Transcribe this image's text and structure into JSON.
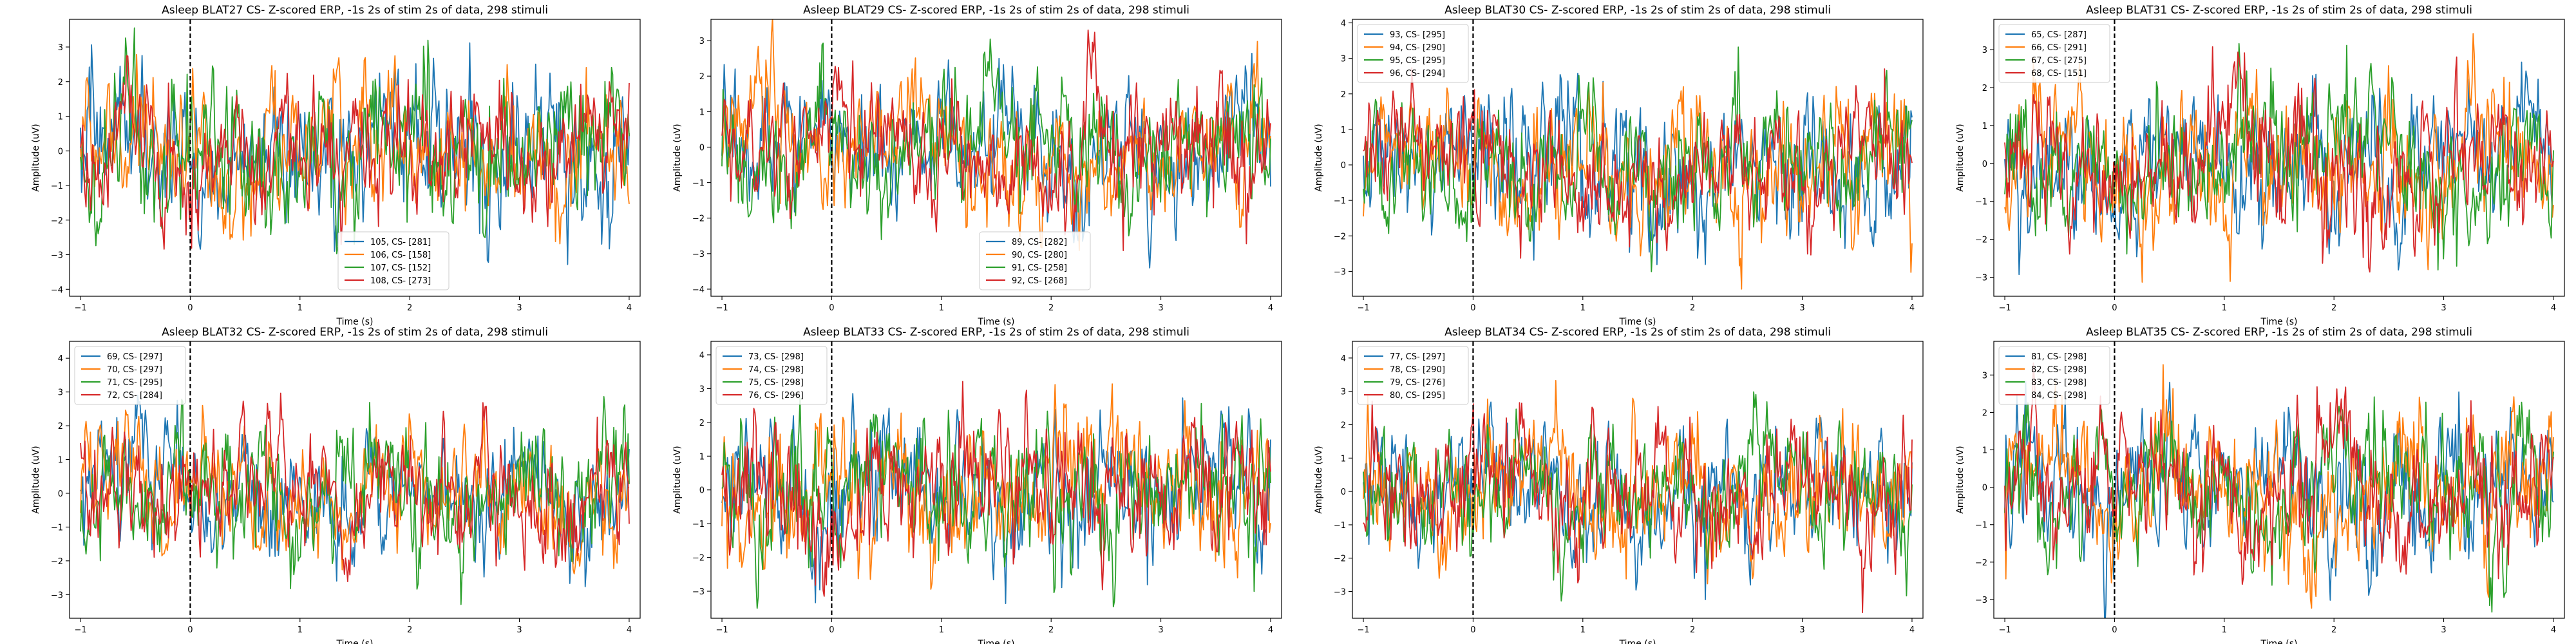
{
  "chart_data": [
    {
      "type": "line",
      "title": "Asleep BLAT27 CS- Z-scored ERP, -1s 2s of stim 2s of data, 298 stimuli",
      "xlabel": "Time (s)",
      "ylabel": "Amplitude (uV)",
      "xlim": [
        -1.1,
        4.1
      ],
      "ylim": [
        -4.2,
        3.8
      ],
      "xticks": [
        -1,
        0,
        1,
        2,
        3,
        4
      ],
      "yticks": [
        -4,
        -3,
        -2,
        -1,
        0,
        1,
        2,
        3
      ],
      "stim_marker_x": 0,
      "legend_position": "lower center",
      "series": [
        {
          "name": "105, CS- [281]",
          "color": "#1f77b4",
          "amplitude": 1.1
        },
        {
          "name": "106, CS- [158]",
          "color": "#ff7f0e",
          "amplitude": 1.05
        },
        {
          "name": "107, CS- [152]",
          "color": "#2ca02c",
          "amplitude": 1.15
        },
        {
          "name": "108, CS- [273]",
          "color": "#d62728",
          "amplitude": 1.0
        }
      ]
    },
    {
      "type": "line",
      "title": "Asleep BLAT29 CS- Z-scored ERP, -1s 2s of stim 2s of data, 298 stimuli",
      "xlabel": "Time (s)",
      "ylabel": "Amplitude (uV)",
      "xlim": [
        -1.1,
        4.1
      ],
      "ylim": [
        -4.2,
        3.6
      ],
      "xticks": [
        -1,
        0,
        1,
        2,
        3,
        4
      ],
      "yticks": [
        -4,
        -3,
        -2,
        -1,
        0,
        1,
        2,
        3
      ],
      "stim_marker_x": 0,
      "legend_position": "lower center",
      "series": [
        {
          "name": "89, CS- [282]",
          "color": "#1f77b4",
          "amplitude": 1.0
        },
        {
          "name": "90, CS- [280]",
          "color": "#ff7f0e",
          "amplitude": 1.05
        },
        {
          "name": "91, CS- [258]",
          "color": "#2ca02c",
          "amplitude": 1.0
        },
        {
          "name": "92, CS- [268]",
          "color": "#d62728",
          "amplitude": 1.0
        }
      ]
    },
    {
      "type": "line",
      "title": "Asleep BLAT30 CS- Z-scored ERP, -1s 2s of stim 2s of data, 298 stimuli",
      "xlabel": "Time (s)",
      "ylabel": "Amplitude (uV)",
      "xlim": [
        -1.1,
        4.1
      ],
      "ylim": [
        -3.7,
        4.1
      ],
      "xticks": [
        -1,
        0,
        1,
        2,
        3,
        4
      ],
      "yticks": [
        -3,
        -2,
        -1,
        0,
        1,
        2,
        3,
        4
      ],
      "stim_marker_x": 0,
      "legend_position": "upper left",
      "series": [
        {
          "name": "93, CS- [295]",
          "color": "#1f77b4",
          "amplitude": 1.05
        },
        {
          "name": "94, CS- [290]",
          "color": "#ff7f0e",
          "amplitude": 1.05
        },
        {
          "name": "95, CS- [295]",
          "color": "#2ca02c",
          "amplitude": 1.0
        },
        {
          "name": "96, CS- [294]",
          "color": "#d62728",
          "amplitude": 0.95
        }
      ]
    },
    {
      "type": "line",
      "title": "Asleep BLAT31 CS- Z-scored ERP, -1s 2s of stim 2s of data, 298 stimuli",
      "xlabel": "Time (s)",
      "ylabel": "Amplitude (uV)",
      "xlim": [
        -1.1,
        4.1
      ],
      "ylim": [
        -3.5,
        3.8
      ],
      "xticks": [
        -1,
        0,
        1,
        2,
        3,
        4
      ],
      "yticks": [
        -3,
        -2,
        -1,
        0,
        1,
        2,
        3
      ],
      "stim_marker_x": 0,
      "legend_position": "upper left",
      "series": [
        {
          "name": "65, CS- [287]",
          "color": "#1f77b4",
          "amplitude": 1.0
        },
        {
          "name": "66, CS- [291]",
          "color": "#ff7f0e",
          "amplitude": 1.05
        },
        {
          "name": "67, CS- [275]",
          "color": "#2ca02c",
          "amplitude": 1.0
        },
        {
          "name": "68, CS- [151]",
          "color": "#d62728",
          "amplitude": 1.05
        }
      ]
    },
    {
      "type": "line",
      "title": "Asleep BLAT32 CS- Z-scored ERP, -1s 2s of stim 2s of data, 298 stimuli",
      "xlabel": "Time (s)",
      "ylabel": "Amplitude (uV)",
      "xlim": [
        -1.1,
        4.1
      ],
      "ylim": [
        -3.7,
        4.5
      ],
      "xticks": [
        -1,
        0,
        1,
        2,
        3,
        4
      ],
      "yticks": [
        -3,
        -2,
        -1,
        0,
        1,
        2,
        3,
        4
      ],
      "stim_marker_x": 0,
      "legend_position": "upper left",
      "series": [
        {
          "name": "69, CS- [297]",
          "color": "#1f77b4",
          "amplitude": 1.0
        },
        {
          "name": "70, CS- [297]",
          "color": "#ff7f0e",
          "amplitude": 1.0
        },
        {
          "name": "71, CS- [295]",
          "color": "#2ca02c",
          "amplitude": 1.05
        },
        {
          "name": "72, CS- [284]",
          "color": "#d62728",
          "amplitude": 1.0
        }
      ]
    },
    {
      "type": "line",
      "title": "Asleep BLAT33 CS- Z-scored ERP, -1s 2s of stim 2s of data, 298 stimuli",
      "xlabel": "Time (s)",
      "ylabel": "Amplitude (uV)",
      "xlim": [
        -1.1,
        4.1
      ],
      "ylim": [
        -3.8,
        4.4
      ],
      "xticks": [
        -1,
        0,
        1,
        2,
        3,
        4
      ],
      "yticks": [
        -3,
        -2,
        -1,
        0,
        1,
        2,
        3,
        4
      ],
      "stim_marker_x": 0,
      "legend_position": "upper left",
      "series": [
        {
          "name": "73, CS- [298]",
          "color": "#1f77b4",
          "amplitude": 1.1
        },
        {
          "name": "74, CS- [298]",
          "color": "#ff7f0e",
          "amplitude": 1.1
        },
        {
          "name": "75, CS- [298]",
          "color": "#2ca02c",
          "amplitude": 1.1
        },
        {
          "name": "76, CS- [296]",
          "color": "#d62728",
          "amplitude": 1.1
        }
      ]
    },
    {
      "type": "line",
      "title": "Asleep BLAT34 CS- Z-scored ERP, -1s 2s of stim 2s of data, 298 stimuli",
      "xlabel": "Time (s)",
      "ylabel": "Amplitude (uV)",
      "xlim": [
        -1.1,
        4.1
      ],
      "ylim": [
        -3.8,
        4.5
      ],
      "xticks": [
        -1,
        0,
        1,
        2,
        3,
        4
      ],
      "yticks": [
        -3,
        -2,
        -1,
        0,
        1,
        2,
        3,
        4
      ],
      "stim_marker_x": 0,
      "legend_position": "upper left",
      "series": [
        {
          "name": "77, CS- [297]",
          "color": "#1f77b4",
          "amplitude": 1.0
        },
        {
          "name": "78, CS- [290]",
          "color": "#ff7f0e",
          "amplitude": 1.05
        },
        {
          "name": "79, CS- [276]",
          "color": "#2ca02c",
          "amplitude": 1.0
        },
        {
          "name": "80, CS- [295]",
          "color": "#d62728",
          "amplitude": 1.05
        }
      ]
    },
    {
      "type": "line",
      "title": "Asleep BLAT35 CS- Z-scored ERP, -1s 2s of stim 2s of data, 298 stimuli",
      "xlabel": "Time (s)",
      "ylabel": "Amplitude (uV)",
      "xlim": [
        -1.1,
        4.1
      ],
      "ylim": [
        -3.5,
        3.9
      ],
      "xticks": [
        -1,
        0,
        1,
        2,
        3,
        4
      ],
      "yticks": [
        -3,
        -2,
        -1,
        0,
        1,
        2,
        3
      ],
      "stim_marker_x": 0,
      "legend_position": "upper left",
      "series": [
        {
          "name": "81, CS- [298]",
          "color": "#1f77b4",
          "amplitude": 1.05
        },
        {
          "name": "82, CS- [298]",
          "color": "#ff7f0e",
          "amplitude": 1.05
        },
        {
          "name": "83, CS- [298]",
          "color": "#2ca02c",
          "amplitude": 1.05
        },
        {
          "name": "84, CS- [298]",
          "color": "#d62728",
          "amplitude": 1.05
        }
      ]
    }
  ]
}
